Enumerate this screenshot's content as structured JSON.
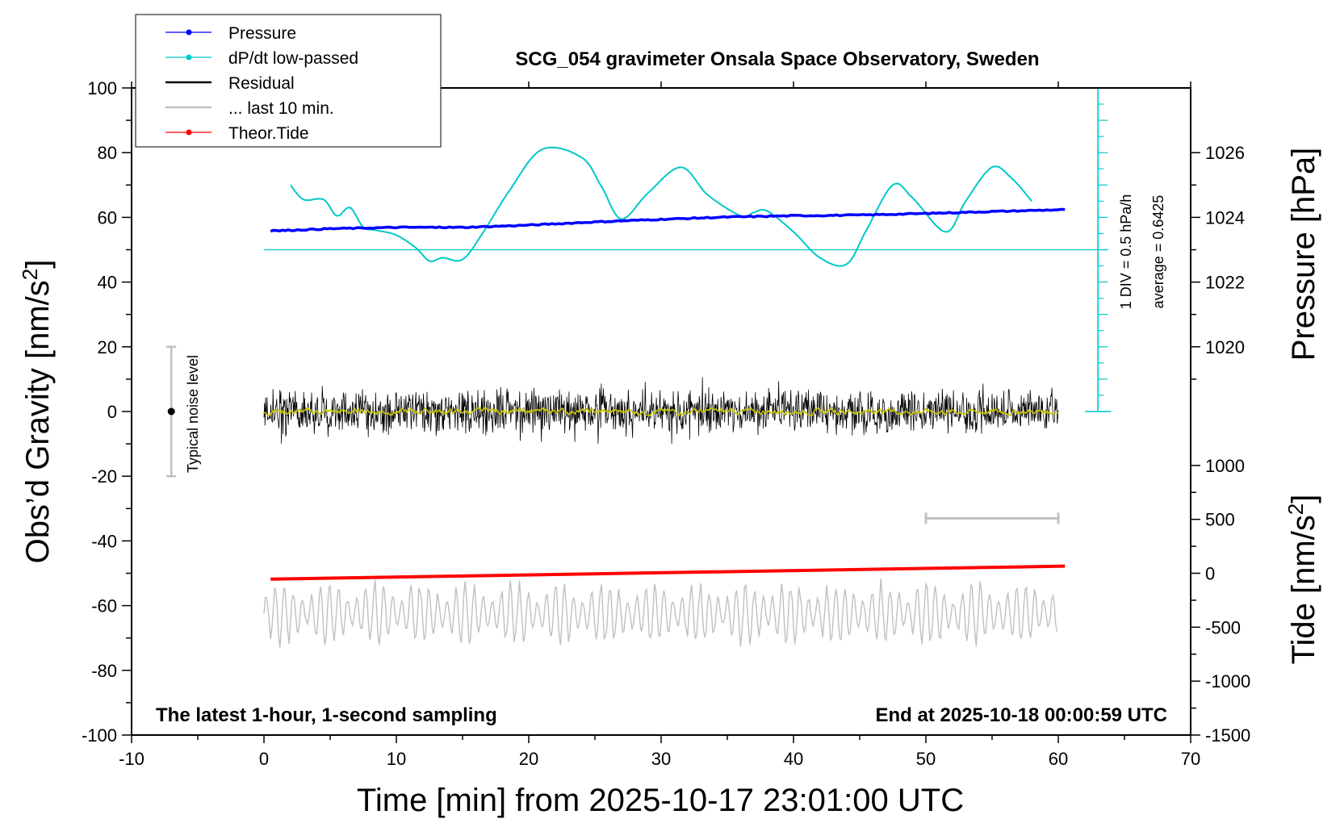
{
  "chart_data": {
    "type": "line",
    "title": "SCG_054 gravimeter Onsala Space Observatory, Sweden",
    "xlabel": "Time [min] from 2025-10-17 23:01:00 UTC",
    "ylabel_left": [
      "Obs’d Gravity [nm/s",
      "2",
      "]"
    ],
    "ylabel_right_pressure": "Pressure [hPa]",
    "ylabel_right_tide": [
      "Tide [nm/s",
      "2",
      "]"
    ],
    "xlim": [
      -10,
      70
    ],
    "ylim_left": [
      -100,
      100
    ],
    "x_ticks": [
      "-10",
      "0",
      "10",
      "20",
      "30",
      "40",
      "50",
      "60",
      "70"
    ],
    "y_ticks_left": [
      "100",
      "80",
      "60",
      "40",
      "20",
      "0",
      "-20",
      "-40",
      "-60",
      "-80",
      "-100"
    ],
    "pressure_axis": {
      "ticks": [
        "1026",
        "1024",
        "1022",
        "1020"
      ],
      "values": [
        1026,
        1024,
        1022,
        1020
      ],
      "ref_value": 1024,
      "ref_gravity": 60,
      "hpa_per_gravity_unit": 0.1
    },
    "tide_axis": {
      "ticks": [
        "1000",
        "500",
        "0",
        "-500",
        "-1000",
        "-1500"
      ],
      "values": [
        1000,
        500,
        0,
        -500,
        -1000,
        -1500
      ],
      "ref_value": 0,
      "ref_gravity": -50,
      "tide_per_gravity_unit": 30
    },
    "legend": {
      "position": "top-left",
      "entries": [
        {
          "label": "Pressure",
          "color": "#0000ff",
          "marker": true
        },
        {
          "label": "dP/dt low-passed",
          "color": "#00c8c8",
          "marker": true
        },
        {
          "label": "Residual",
          "color": "#000000",
          "marker": false
        },
        {
          "label": "... last 10 min.",
          "color": "#c0c0c0",
          "marker": false
        },
        {
          "label": "Theor.Tide",
          "color": "#ff0000",
          "marker": true
        }
      ]
    },
    "series": [
      {
        "name": "Pressure",
        "color": "#0000ff",
        "x": [
          0.5,
          5,
          10,
          15,
          20,
          25,
          30,
          35,
          40,
          45,
          50,
          55,
          60.5
        ],
        "y": [
          55.8,
          56.5,
          56.9,
          56.9,
          57.6,
          58.6,
          59.4,
          60.1,
          60.5,
          60.7,
          61.2,
          61.8,
          62.4
        ]
      },
      {
        "name": "dP/dt low-passed",
        "color": "#00c8c8",
        "x": [
          2,
          3,
          4.5,
          5.5,
          6.5,
          7.5,
          8.5,
          10,
          11.5,
          12.5,
          13.5,
          15,
          16.5,
          18.5,
          21,
          24,
          25.5,
          27,
          29,
          31.5,
          33.5,
          36,
          37,
          38,
          40,
          42,
          44,
          45.5,
          47.5,
          49,
          51.5,
          53,
          55,
          56.5,
          58
        ],
        "y": [
          70,
          65.5,
          65.5,
          60.5,
          63,
          57,
          56,
          54.5,
          50.5,
          46.5,
          47.5,
          47,
          55,
          68,
          81,
          78.5,
          69.5,
          59.5,
          67.5,
          75.5,
          67,
          60.5,
          61.5,
          62,
          55.5,
          47.5,
          45.5,
          56,
          70,
          66,
          55.5,
          65,
          75.5,
          72,
          65
        ]
      },
      {
        "name": "Residual",
        "color": "#000000",
        "x_start": 0,
        "x_end": 60,
        "envelope": [
          -10,
          12
        ]
      },
      {
        "name": "Residual low-passed",
        "color": "#c8c800",
        "x_start": 0,
        "x_end": 60,
        "envelope": [
          -2,
          2
        ]
      },
      {
        "name": "... last 10 min.",
        "color": "#c0c0c0",
        "x_start": 0,
        "x_end": 60,
        "y_center": -62.5,
        "envelope": [
          -73,
          -51
        ]
      },
      {
        "name": "Theor.Tide",
        "color": "#ff0000",
        "x": [
          0.5,
          60.5
        ],
        "y": [
          -51.8,
          -47.8
        ]
      }
    ],
    "dpdt_axis": {
      "x": 63,
      "baseline_gravity": 50,
      "ticks_gravity": [
        100,
        95,
        90,
        85,
        80,
        75,
        70,
        65,
        60,
        55,
        50,
        45,
        40,
        35,
        30,
        25,
        20,
        15,
        10,
        5,
        0
      ]
    },
    "annotations": {
      "scale_label": "1 DIV = 0.5 hPa/h",
      "average_label": "average = 0.6425",
      "noise_label": "Typical noise level",
      "noise_bar": {
        "x": -7,
        "y_min": -20,
        "y_max": 20
      },
      "ten_min_bar": {
        "x_start": 50,
        "x_end": 60,
        "y": -33
      },
      "footer_left": "The latest 1-hour, 1-second sampling",
      "footer_right": "End at 2025-10-18 00:00:59 UTC"
    },
    "grid": false
  }
}
